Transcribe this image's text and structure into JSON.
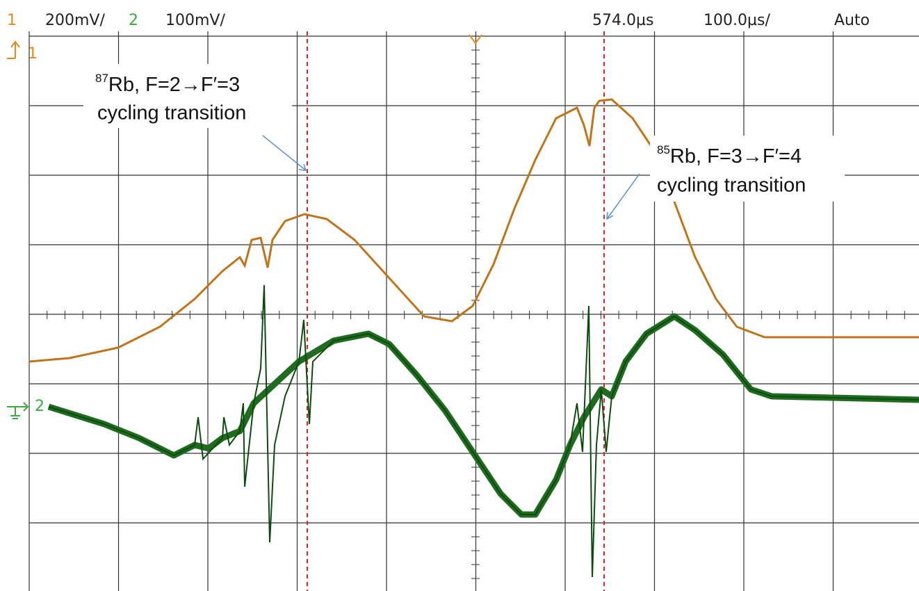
{
  "header": {
    "ch1": "1",
    "ch1_scale": "200mV/",
    "ch2": "2",
    "ch2_scale": "100mV/",
    "time_offset": "574.0µs",
    "time_scale": "100.0µs/",
    "trigger_mode": "Auto"
  },
  "markers": {
    "ch1": "1",
    "ch2": "2"
  },
  "annotations": [
    {
      "isotope": "87",
      "line1": "Rb, F=2→F′=3",
      "line2": "cycling transition"
    },
    {
      "isotope": "85",
      "line1": "Rb, F=3→F′=4",
      "line2": "cycling transition"
    }
  ]
}
